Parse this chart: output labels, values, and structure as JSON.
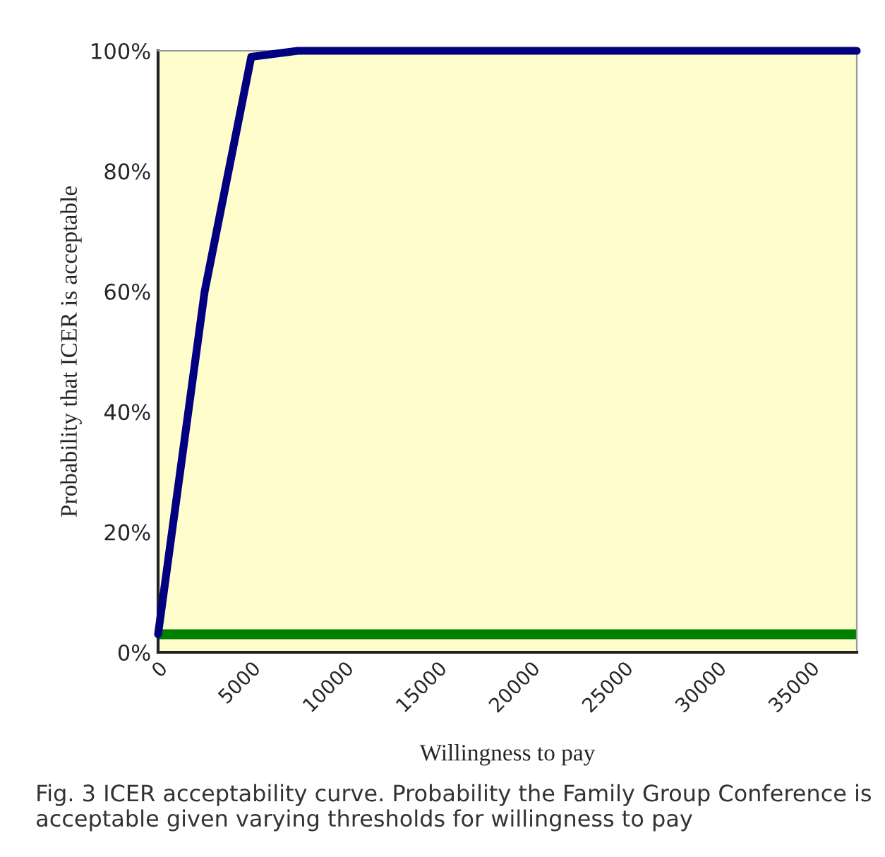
{
  "chart_data": {
    "type": "line",
    "xlabel": "Willingness to pay",
    "ylabel": "Probability that ICER is acceptable",
    "x": [
      0,
      2500,
      5000,
      7500,
      37500
    ],
    "series": [
      {
        "color": "#000080",
        "values": [
          3,
          60,
          99,
          100,
          100
        ]
      }
    ],
    "ref_lines": [
      {
        "axis": "y",
        "value": 3,
        "color": "#008000"
      }
    ],
    "xlim": [
      0,
      37500
    ],
    "xticks": [
      0,
      5000,
      10000,
      15000,
      20000,
      25000,
      30000,
      35000
    ],
    "ylim": [
      0,
      100
    ],
    "yticks": [
      {
        "value": 0,
        "label": "0%"
      },
      {
        "value": 20,
        "label": "20%"
      },
      {
        "value": 40,
        "label": "40%"
      },
      {
        "value": 60,
        "label": "60%"
      },
      {
        "value": 80,
        "label": "80%"
      },
      {
        "value": 100,
        "label": "100%"
      }
    ],
    "grid": false,
    "legend": false,
    "marker": "none",
    "line_style": "solid",
    "annotations": [
      "Fig. 3 ICER acceptability curve. Probability the Family Group Conference is acceptable given varying thresholds for willingness to pay"
    ]
  }
}
